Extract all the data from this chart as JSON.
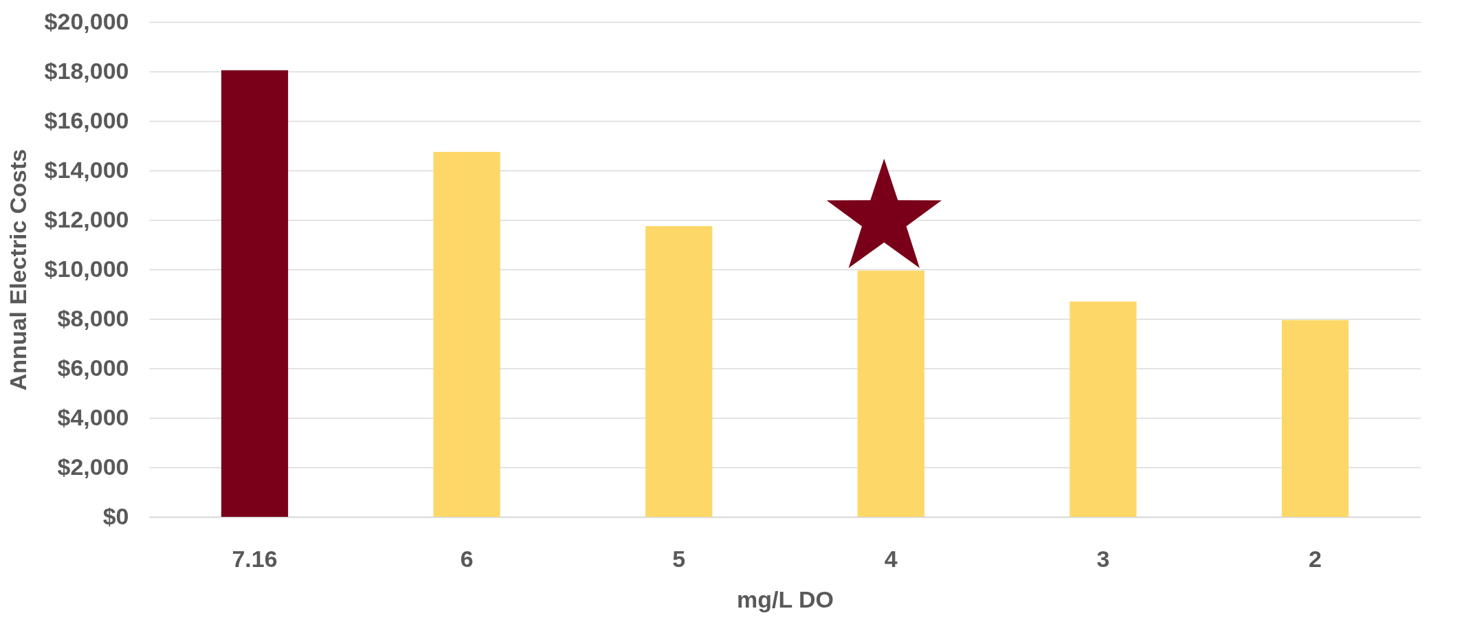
{
  "chart_data": {
    "type": "bar",
    "xlabel": "mg/L DO",
    "ylabel": "Annual Electric Costs",
    "categories": [
      "7.16",
      "6",
      "5",
      "4",
      "3",
      "2"
    ],
    "values": [
      18050,
      14750,
      11750,
      9950,
      8700,
      7950
    ],
    "colors": [
      "#7a0019",
      "#fdd868",
      "#fdd868",
      "#fdd868",
      "#fdd868",
      "#fdd868"
    ],
    "ylim": [
      0,
      20000
    ],
    "yticks": [
      {
        "value": 0,
        "label": "$0"
      },
      {
        "value": 2000,
        "label": "$2,000"
      },
      {
        "value": 4000,
        "label": "$4,000"
      },
      {
        "value": 6000,
        "label": "$6,000"
      },
      {
        "value": 8000,
        "label": "$8,000"
      },
      {
        "value": 10000,
        "label": "$10,000"
      },
      {
        "value": 12000,
        "label": "$12,000"
      },
      {
        "value": 14000,
        "label": "$14,000"
      },
      {
        "value": 16000,
        "label": "$16,000"
      },
      {
        "value": 18000,
        "label": "$18,000"
      },
      {
        "value": 20000,
        "label": "$20,000"
      }
    ],
    "grid": "y",
    "legend": false
  }
}
